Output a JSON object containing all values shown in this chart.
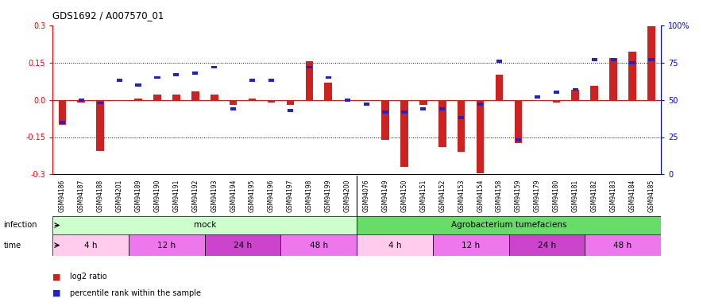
{
  "title": "GDS1692 / A007570_01",
  "samples": [
    "GSM94186",
    "GSM94187",
    "GSM94188",
    "GSM94201",
    "GSM94189",
    "GSM94190",
    "GSM94191",
    "GSM94192",
    "GSM94193",
    "GSM94194",
    "GSM94195",
    "GSM94196",
    "GSM94197",
    "GSM94198",
    "GSM94199",
    "GSM94200",
    "GSM94076",
    "GSM94149",
    "GSM94150",
    "GSM94151",
    "GSM94152",
    "GSM94153",
    "GSM94154",
    "GSM94158",
    "GSM94159",
    "GSM94179",
    "GSM94180",
    "GSM94181",
    "GSM94182",
    "GSM94183",
    "GSM94184",
    "GSM94185"
  ],
  "log2_ratio": [
    -0.1,
    -0.01,
    -0.205,
    -0.005,
    0.005,
    0.02,
    0.02,
    0.035,
    0.02,
    -0.02,
    0.005,
    -0.01,
    -0.02,
    0.155,
    0.07,
    -0.005,
    -0.005,
    -0.16,
    -0.27,
    -0.02,
    -0.19,
    -0.21,
    -0.295,
    0.1,
    -0.175,
    -0.005,
    -0.01,
    0.04,
    0.055,
    0.17,
    0.195,
    0.295
  ],
  "percentile": [
    35,
    50,
    48,
    63,
    60,
    65,
    67,
    68,
    72,
    44,
    63,
    63,
    43,
    72,
    65,
    50,
    47,
    42,
    42,
    44,
    44,
    38,
    47,
    76,
    23,
    52,
    55,
    57,
    77,
    77,
    75,
    77
  ],
  "infection_groups": [
    {
      "label": "mock",
      "start": 0,
      "end": 16,
      "color": "#ccffcc"
    },
    {
      "label": "Agrobacterium tumefaciens",
      "start": 16,
      "end": 32,
      "color": "#66dd66"
    }
  ],
  "time_groups": [
    {
      "label": "4 h",
      "start": 0,
      "end": 4,
      "color": "#ffccee"
    },
    {
      "label": "12 h",
      "start": 4,
      "end": 8,
      "color": "#ee77ee"
    },
    {
      "label": "24 h",
      "start": 8,
      "end": 12,
      "color": "#cc44cc"
    },
    {
      "label": "48 h",
      "start": 12,
      "end": 16,
      "color": "#ee77ee"
    },
    {
      "label": "4 h",
      "start": 16,
      "end": 20,
      "color": "#ffccee"
    },
    {
      "label": "12 h",
      "start": 20,
      "end": 24,
      "color": "#ee77ee"
    },
    {
      "label": "24 h",
      "start": 24,
      "end": 28,
      "color": "#cc44cc"
    },
    {
      "label": "48 h",
      "start": 28,
      "end": 32,
      "color": "#ee77ee"
    }
  ],
  "ylim": [
    -0.3,
    0.3
  ],
  "yticks_left": [
    -0.3,
    -0.15,
    0.0,
    0.15,
    0.3
  ],
  "yticks_right": [
    0,
    25,
    50,
    75,
    100
  ],
  "bar_color": "#cc2222",
  "dot_color": "#2222cc",
  "background_color": "#ffffff"
}
